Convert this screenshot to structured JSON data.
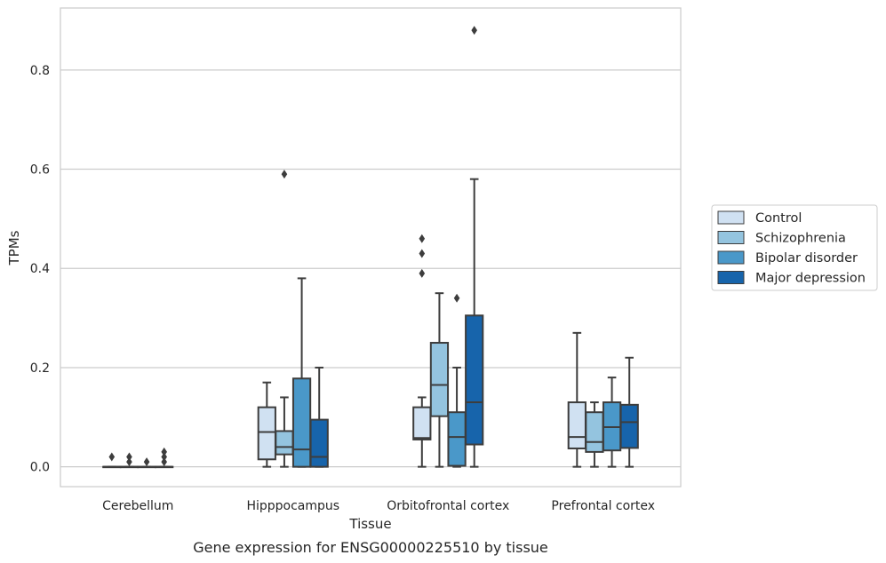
{
  "caption": "Gene expression for ENSG00000225510 by tissue",
  "chart_data": {
    "type": "boxplot",
    "xlabel": "Tissue",
    "ylabel": "TPMs",
    "ylim": [
      -0.04,
      0.925
    ],
    "yticks": [
      "0.0",
      "0.2",
      "0.4",
      "0.6",
      "0.8"
    ],
    "grid": true,
    "legend_position": "right",
    "categories": [
      "Cerebellum",
      "Hipppocampus",
      "Orbitofrontal cortex",
      "Prefrontal cortex"
    ],
    "series": [
      {
        "name": "Control",
        "color": "#d0e1f2",
        "boxes": [
          {
            "whislo": 0,
            "q1": 0,
            "med": 0,
            "q3": 0,
            "whishi": 0,
            "fliers": [
              0.02
            ]
          },
          {
            "whislo": 0,
            "q1": 0.015,
            "med": 0.07,
            "q3": 0.12,
            "whishi": 0.17,
            "fliers": []
          },
          {
            "whislo": 0,
            "q1": 0.055,
            "med": 0.058,
            "q3": 0.12,
            "whishi": 0.14,
            "fliers": [
              0.39,
              0.43,
              0.46
            ]
          },
          {
            "whislo": 0,
            "q1": 0.037,
            "med": 0.06,
            "q3": 0.13,
            "whishi": 0.27,
            "fliers": []
          }
        ]
      },
      {
        "name": "Schizophrenia",
        "color": "#94c4df",
        "boxes": [
          {
            "whislo": 0,
            "q1": 0,
            "med": 0,
            "q3": 0,
            "whishi": 0,
            "fliers": [
              0.01,
              0.02
            ]
          },
          {
            "whislo": 0,
            "q1": 0.025,
            "med": 0.04,
            "q3": 0.072,
            "whishi": 0.14,
            "fliers": [
              0.59
            ]
          },
          {
            "whislo": 0,
            "q1": 0.102,
            "med": 0.165,
            "q3": 0.25,
            "whishi": 0.35,
            "fliers": []
          },
          {
            "whislo": 0,
            "q1": 0.03,
            "med": 0.05,
            "q3": 0.11,
            "whishi": 0.13,
            "fliers": []
          }
        ]
      },
      {
        "name": "Bipolar disorder",
        "color": "#4a98c9",
        "boxes": [
          {
            "whislo": 0,
            "q1": 0,
            "med": 0,
            "q3": 0,
            "whishi": 0,
            "fliers": [
              0.01
            ]
          },
          {
            "whislo": 0,
            "q1": 0,
            "med": 0.035,
            "q3": 0.178,
            "whishi": 0.38,
            "fliers": []
          },
          {
            "whislo": 0,
            "q1": 0.002,
            "med": 0.06,
            "q3": 0.11,
            "whishi": 0.2,
            "fliers": [
              0.34
            ]
          },
          {
            "whislo": 0,
            "q1": 0.033,
            "med": 0.08,
            "q3": 0.13,
            "whishi": 0.18,
            "fliers": []
          }
        ]
      },
      {
        "name": "Major depression",
        "color": "#1764ab",
        "boxes": [
          {
            "whislo": 0,
            "q1": 0,
            "med": 0,
            "q3": 0,
            "whishi": 0,
            "fliers": [
              0.01,
              0.02,
              0.03
            ]
          },
          {
            "whislo": 0,
            "q1": 0,
            "med": 0.02,
            "q3": 0.095,
            "whishi": 0.2,
            "fliers": []
          },
          {
            "whislo": 0,
            "q1": 0.045,
            "med": 0.13,
            "q3": 0.305,
            "whishi": 0.58,
            "fliers": [
              0.88
            ]
          },
          {
            "whislo": 0,
            "q1": 0.038,
            "med": 0.09,
            "q3": 0.125,
            "whishi": 0.22,
            "fliers": []
          }
        ]
      }
    ]
  }
}
